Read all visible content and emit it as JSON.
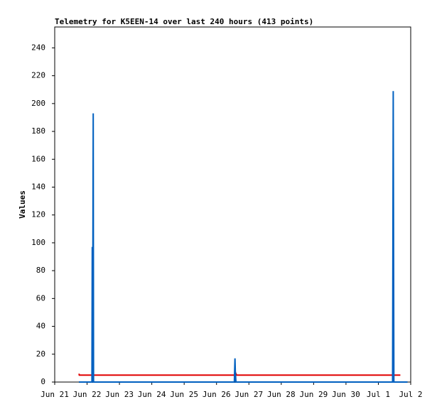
{
  "chart_data": {
    "type": "line",
    "title": "Telemetry for K5EEN-14 over last 240 hours (413 points)",
    "y_label": "Values",
    "xlim": [
      0,
      11
    ],
    "xticks": [
      {
        "value": 0,
        "label": "Jun 21"
      },
      {
        "value": 1,
        "label": "Jun 22"
      },
      {
        "value": 2,
        "label": "Jun 23"
      },
      {
        "value": 3,
        "label": "Jun 24"
      },
      {
        "value": 4,
        "label": "Jun 25"
      },
      {
        "value": 5,
        "label": "Jun 26"
      },
      {
        "value": 6,
        "label": "Jun 27"
      },
      {
        "value": 7,
        "label": "Jun 28"
      },
      {
        "value": 8,
        "label": "Jun 29"
      },
      {
        "value": 9,
        "label": "Jun 30"
      },
      {
        "value": 10,
        "label": "Jul 1"
      },
      {
        "value": 11,
        "label": "Jul 2"
      }
    ],
    "ylim": [
      0,
      255
    ],
    "yticks": [
      0,
      20,
      40,
      60,
      80,
      100,
      120,
      140,
      160,
      180,
      200,
      220,
      240
    ],
    "grid": false,
    "series": [
      {
        "color": "#000000",
        "x": [
          0.75,
          10.9
        ],
        "values": [
          0,
          0
        ]
      },
      {
        "color": "#e00000",
        "x": [
          0.75,
          0.76,
          5.55,
          5.58,
          5.62,
          10.68
        ],
        "values": [
          6,
          5,
          5,
          7,
          5,
          5
        ]
      },
      {
        "color": "#0060c0",
        "x": [
          0.75,
          1.15,
          1.16,
          1.17,
          1.19,
          1.2,
          1.21,
          5.55,
          5.57,
          5.58,
          5.6,
          10.44,
          10.46,
          10.48,
          10.9
        ],
        "values": [
          0,
          0,
          97,
          0,
          193,
          0,
          0,
          0,
          17,
          8,
          0,
          0,
          209,
          0,
          0
        ]
      }
    ]
  }
}
